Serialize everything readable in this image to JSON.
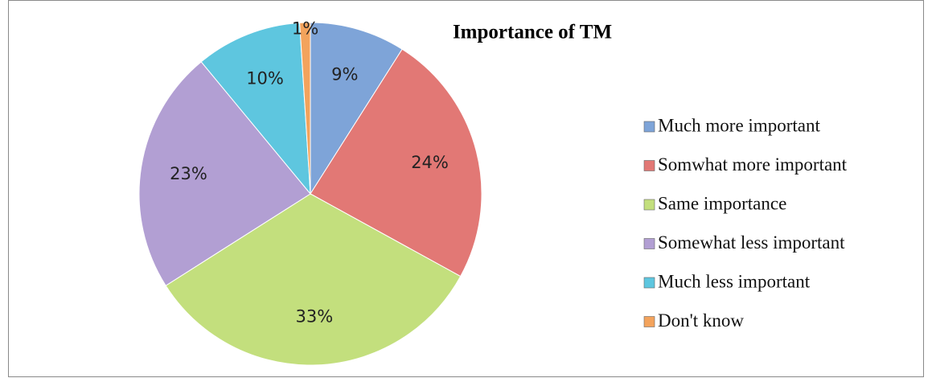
{
  "chart_data": {
    "type": "pie",
    "title": "Importance of TM",
    "categories": [
      "Much more important",
      "Somwhat more important",
      "Same importance",
      "Somewhat less important",
      "Much less important",
      "Don't know"
    ],
    "values": [
      9,
      24,
      33,
      23,
      10,
      1
    ],
    "value_labels": [
      "9%",
      "24%",
      "33%",
      "23%",
      "10%",
      "1%"
    ],
    "colors": [
      "#7ea4d8",
      "#e27875",
      "#c3df7d",
      "#b29fd3",
      "#5ec6df",
      "#f3a35c"
    ]
  }
}
